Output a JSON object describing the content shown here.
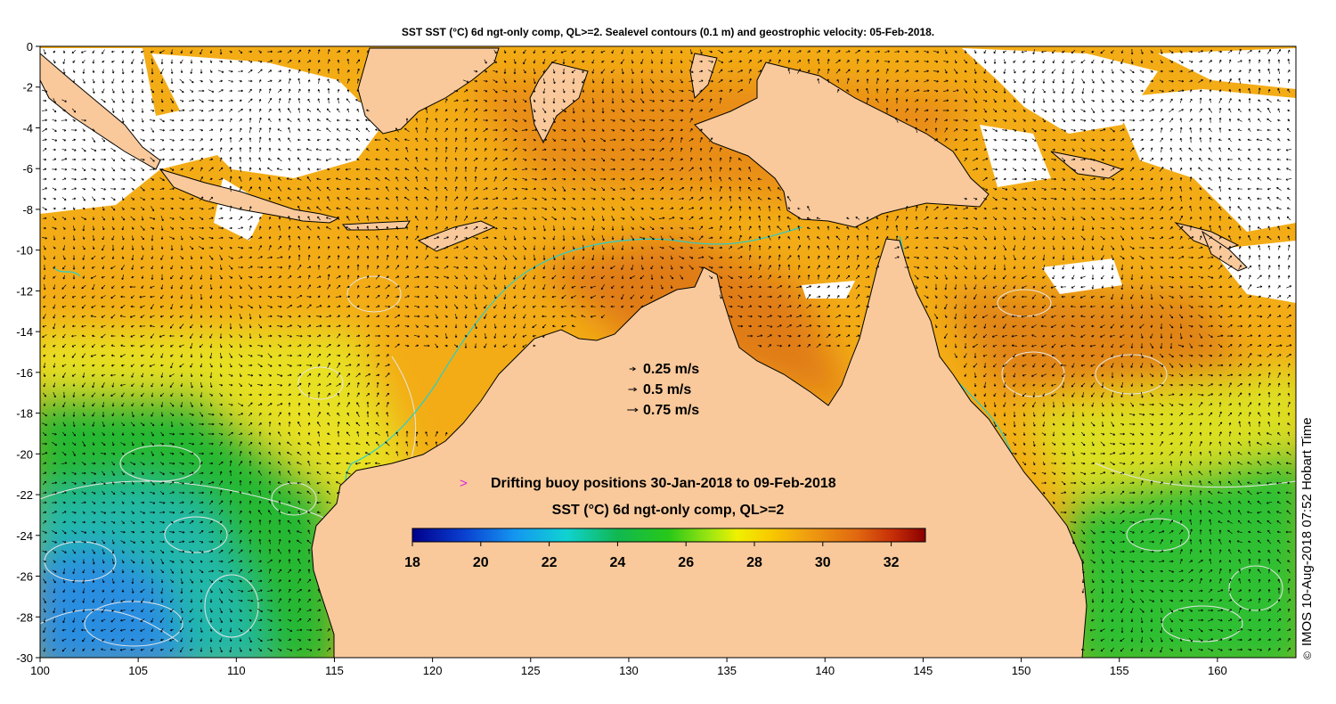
{
  "title": "SST SST (°C) 6d ngt-only comp, QL>=2. Sealevel contours (0.1 m) and geostrophic velocity: 05-Feb-2018.",
  "credit": {
    "symbol": "©",
    "text": "IMOS 10-Aug-2018 07:52 Hobart Time"
  },
  "map": {
    "lon_range": [
      100,
      164
    ],
    "lat_range": [
      -30,
      0
    ],
    "lon_ticks": [
      "100",
      "105",
      "110",
      "115",
      "120",
      "125",
      "130",
      "135",
      "140",
      "145",
      "150",
      "155",
      "160"
    ],
    "lat_ticks": [
      "0",
      "-2",
      "-4",
      "-6",
      "-8",
      "-10",
      "-12",
      "-14",
      "-16",
      "-18",
      "-20",
      "-22",
      "-24",
      "-26",
      "-28",
      "-30"
    ],
    "colors": {
      "land": "#f9c99b",
      "missing": "#ffffff",
      "coast": "#000000",
      "contour": "#e8e8e8",
      "shallow": "#22d0d0"
    }
  },
  "velocity_legend": [
    {
      "label": "0.25 m/s",
      "speed": 0.25
    },
    {
      "label": "0.5 m/s",
      "speed": 0.5
    },
    {
      "label": "0.75 m/s",
      "speed": 0.75
    }
  ],
  "buoy_legend": {
    "symbol": ">",
    "symbol_color": "#e020e0",
    "text": "Drifting buoy positions 30-Jan-2018 to 09-Feb-2018"
  },
  "colorbar": {
    "title": "SST (°C) 6d ngt-only comp, QL>=2",
    "min": 18,
    "max": 33,
    "ticks": [
      "18",
      "20",
      "22",
      "24",
      "26",
      "28",
      "30",
      "32"
    ],
    "stops": [
      {
        "value": 18,
        "color": "#00008a"
      },
      {
        "value": 19.5,
        "color": "#0a3fd0"
      },
      {
        "value": 21,
        "color": "#1496f0"
      },
      {
        "value": 22.5,
        "color": "#10d2d2"
      },
      {
        "value": 24,
        "color": "#10b850"
      },
      {
        "value": 25.5,
        "color": "#28c818"
      },
      {
        "value": 26.8,
        "color": "#a8e810"
      },
      {
        "value": 27.5,
        "color": "#f0f000"
      },
      {
        "value": 28.5,
        "color": "#f8c800"
      },
      {
        "value": 29.5,
        "color": "#f0a010"
      },
      {
        "value": 31,
        "color": "#e06810"
      },
      {
        "value": 32,
        "color": "#c83008"
      },
      {
        "value": 33,
        "color": "#8a0000"
      }
    ]
  }
}
